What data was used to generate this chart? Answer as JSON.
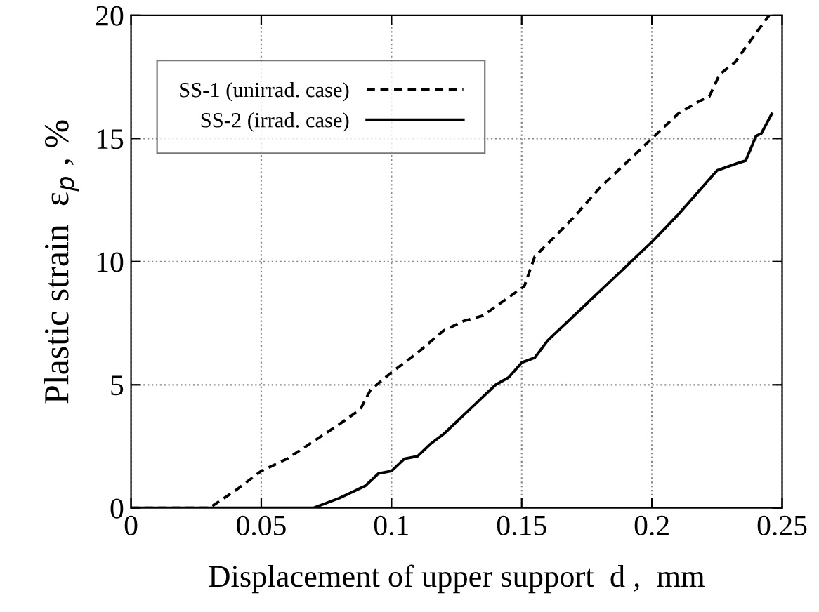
{
  "chart_data": {
    "type": "line",
    "xlabel": "Displacement of upper support  d ,  mm",
    "ylabel": "Plastic strain  ε$_{p}$ , %",
    "xlim": [
      0,
      0.25
    ],
    "xticks": [
      0,
      0.05,
      0.1,
      0.15,
      0.2,
      0.25
    ],
    "ylim": [
      0,
      20
    ],
    "yticks": [
      0,
      5,
      10,
      15,
      20
    ],
    "grid": true,
    "legend": "top left",
    "series": [
      {
        "name": "SS-1 (unirrad. case)",
        "color": "#000000",
        "line_style": "dashed",
        "x": [
          0,
          0.03,
          0.04,
          0.05,
          0.06,
          0.07,
          0.08,
          0.088,
          0.092,
          0.1,
          0.11,
          0.12,
          0.128,
          0.135,
          0.143,
          0.151,
          0.155,
          0.17,
          0.18,
          0.19,
          0.2,
          0.21,
          0.218,
          0.222,
          0.226,
          0.232,
          0.236,
          0.245
        ],
        "values": [
          0,
          0,
          0.7,
          1.5,
          2.0,
          2.7,
          3.4,
          4.0,
          4.8,
          5.5,
          6.3,
          7.2,
          7.6,
          7.8,
          8.4,
          9.0,
          10.2,
          11.8,
          13.0,
          14.0,
          15.0,
          16.0,
          16.5,
          16.7,
          17.6,
          18.1,
          18.7,
          20.0
        ]
      },
      {
        "name": "SS-2 (irrad. case)",
        "color": "#000000",
        "line_style": "solid",
        "x": [
          0,
          0.07,
          0.075,
          0.08,
          0.09,
          0.095,
          0.1,
          0.105,
          0.11,
          0.115,
          0.12,
          0.13,
          0.14,
          0.145,
          0.15,
          0.155,
          0.16,
          0.17,
          0.18,
          0.19,
          0.2,
          0.21,
          0.225,
          0.233,
          0.236,
          0.24,
          0.242,
          0.246
        ],
        "values": [
          0,
          0,
          0.2,
          0.4,
          0.9,
          1.4,
          1.5,
          2.0,
          2.1,
          2.6,
          3.0,
          4.0,
          5.0,
          5.3,
          5.9,
          6.1,
          6.8,
          7.8,
          8.8,
          9.8,
          10.8,
          11.9,
          13.7,
          14.0,
          14.1,
          15.1,
          15.2,
          16.0
        ]
      }
    ]
  }
}
